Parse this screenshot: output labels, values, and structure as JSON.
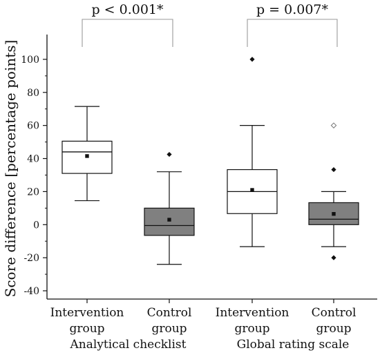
{
  "chart_data": {
    "type": "boxplot",
    "ylabel": "Score difference [percentage points]",
    "ylim": [
      -45,
      115
    ],
    "yticks": [
      -40,
      -20,
      0,
      20,
      40,
      60,
      80,
      100
    ],
    "groups": [
      {
        "label": "Analytical checklist"
      },
      {
        "label": "Global rating scale"
      }
    ],
    "boxes": [
      {
        "line1": "Intervention",
        "line2": "group",
        "group": 0,
        "fill": "#ffffff",
        "whisker_low": 14.5,
        "q1": 31,
        "median": 44,
        "q3": 50.5,
        "whisker_high": 71.5,
        "mean": 41.5,
        "outliers": []
      },
      {
        "line1": "Control",
        "line2": "group",
        "group": 0,
        "fill": "#808080",
        "whisker_low": -24,
        "q1": -6.5,
        "median": -0.5,
        "q3": 10,
        "whisker_high": 32,
        "mean": 3,
        "outliers": [
          {
            "value": 42.5,
            "style": "filled"
          }
        ]
      },
      {
        "line1": "Intervention",
        "line2": "group",
        "group": 1,
        "fill": "#ffffff",
        "whisker_low": -13.3,
        "q1": 6.7,
        "median": 20,
        "q3": 33.3,
        "whisker_high": 60,
        "mean": 21,
        "outliers": [
          {
            "value": 100,
            "style": "filled"
          }
        ]
      },
      {
        "line1": "Control",
        "line2": "group",
        "group": 1,
        "fill": "#808080",
        "whisker_low": -13.3,
        "q1": 0,
        "median": 3.3,
        "q3": 13.3,
        "whisker_high": 20,
        "mean": 6.5,
        "outliers": [
          {
            "value": 33.3,
            "style": "filled"
          },
          {
            "value": -20,
            "style": "filled"
          },
          {
            "value": 60,
            "style": "open"
          }
        ]
      }
    ],
    "brackets": [
      {
        "label": "p < 0.001*",
        "from_box": 0,
        "to_box": 1
      },
      {
        "label": "p = 0.007*",
        "from_box": 2,
        "to_box": 3
      }
    ]
  }
}
